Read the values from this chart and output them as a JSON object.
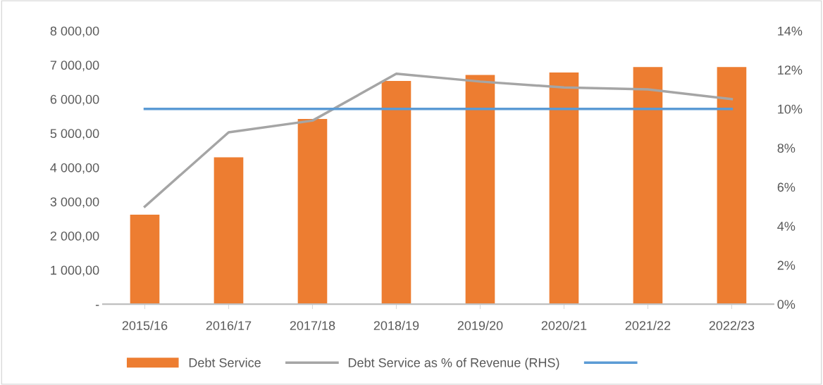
{
  "chart_data": {
    "type": "bar",
    "categories": [
      "2015/16",
      "2016/17",
      "2017/18",
      "2018/19",
      "2019/20",
      "2020/21",
      "2021/22",
      "2022/23"
    ],
    "series": [
      {
        "name": "Debt Service",
        "color": "#ed7d31",
        "values": [
          2620,
          4300,
          5420,
          6530,
          6710,
          6780,
          6940,
          6940
        ]
      },
      {
        "name": "Debt Service as % of Revenue (RHS)",
        "type": "line",
        "axis": "y2",
        "color": "#a5a5a5",
        "values": [
          5.0,
          8.8,
          9.4,
          11.8,
          11.4,
          11.1,
          11.0,
          10.5
        ]
      },
      {
        "type": "line",
        "axis": "y2",
        "color": "#5b9bd5",
        "values": [
          10,
          10,
          10,
          10,
          10,
          10,
          10,
          10
        ]
      }
    ],
    "ylim": [
      0,
      8000
    ],
    "yticks": [
      {
        "value": 0,
        "label": "-"
      },
      {
        "value": 1000,
        "label": "1 000,00"
      },
      {
        "value": 2000,
        "label": "2 000,00"
      },
      {
        "value": 3000,
        "label": "3 000,00"
      },
      {
        "value": 4000,
        "label": "4 000,00"
      },
      {
        "value": 5000,
        "label": "5 000,00"
      },
      {
        "value": 6000,
        "label": "6 000,00"
      },
      {
        "value": 7000,
        "label": "7 000,00"
      },
      {
        "value": 8000,
        "label": "8 000,00"
      }
    ],
    "y2lim": [
      0,
      14
    ],
    "y2ticks": [
      {
        "value": 0,
        "label": "0%"
      },
      {
        "value": 2,
        "label": "2%"
      },
      {
        "value": 4,
        "label": "4%"
      },
      {
        "value": 6,
        "label": "6%"
      },
      {
        "value": 8,
        "label": "8%"
      },
      {
        "value": 10,
        "label": "10%"
      },
      {
        "value": 12,
        "label": "12%"
      },
      {
        "value": 14,
        "label": "14%"
      }
    ],
    "legend": "bottom",
    "grid": false
  }
}
